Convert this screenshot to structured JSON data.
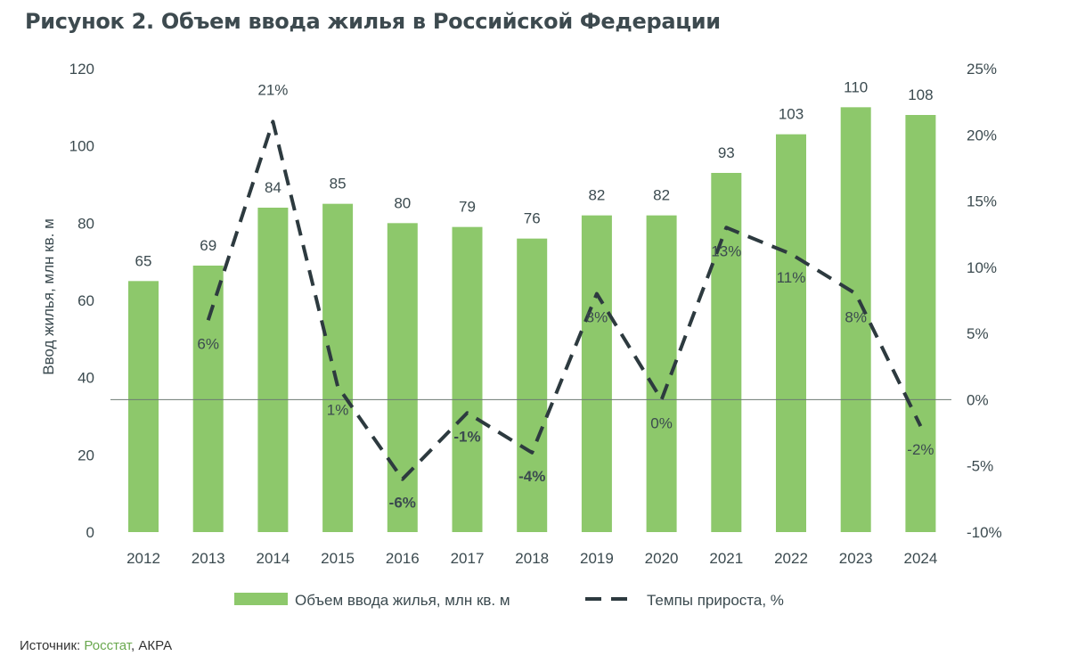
{
  "title": "Рисунок 2. Объем ввода жилья в Российской Федерации",
  "source": {
    "label": "Источник: ",
    "link": "Росстат",
    "rest": ", АКРА"
  },
  "colors": {
    "bar": "#8dc86b",
    "line": "#2d3a3f",
    "text": "#3b4a4f",
    "axis": "#6d7a73"
  },
  "chart_data": {
    "type": "bar",
    "categories": [
      "2012",
      "2013",
      "2014",
      "2015",
      "2016",
      "2017",
      "2018",
      "2019",
      "2020",
      "2021",
      "2022",
      "2023",
      "2024"
    ],
    "series": [
      {
        "name": "Объем ввода жилья, млн кв. м",
        "type": "bar",
        "axis": "left",
        "values": [
          65,
          69,
          84,
          85,
          80,
          79,
          76,
          82,
          82,
          93,
          103,
          110,
          108
        ],
        "labels": [
          "65",
          "69",
          "84",
          "85",
          "80",
          "79",
          "76",
          "82",
          "82",
          "93",
          "103",
          "110",
          "108"
        ]
      },
      {
        "name": "Темпы прироста, %",
        "type": "line",
        "style": "dashed",
        "axis": "right",
        "values": [
          null,
          6,
          21,
          1,
          -6,
          -1,
          -4,
          8,
          0,
          13,
          11,
          8,
          -2
        ],
        "labels": [
          null,
          "6%",
          "21%",
          "1%",
          "-6%",
          "-1%",
          "-4%",
          "8%",
          "0%",
          "13%",
          "11%",
          "8%",
          "-2%"
        ]
      }
    ],
    "ylabel": "Ввод жилья, млн кв. м",
    "ylim": [
      0,
      120
    ],
    "yticks": [
      "0",
      "20",
      "40",
      "60",
      "80",
      "100",
      "120"
    ],
    "y2lim": [
      -10,
      25
    ],
    "y2ticks": [
      "-10%",
      "-5%",
      "0%",
      "5%",
      "10%",
      "15%",
      "20%",
      "25%"
    ],
    "legend_position": "bottom",
    "grid": false
  }
}
